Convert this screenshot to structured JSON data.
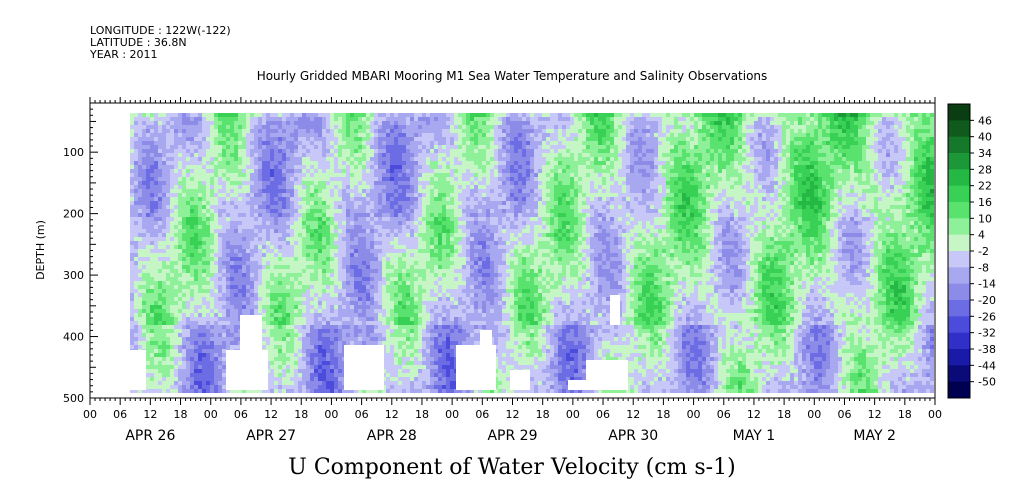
{
  "header": {
    "longitude": "LONGITUDE : 122W(-122)",
    "latitude": "LATITUDE : 36.8N",
    "year": "YEAR : 2011"
  },
  "chart_data": {
    "type": "heatmap",
    "title": "Hourly Gridded MBARI Mooring M1 Sea Water Temperature and Salinity Observations",
    "xlabel": "U Component of Water Velocity (cm s-1)",
    "ylabel": "DEPTH (m)",
    "ylim": [
      500,
      20
    ],
    "y_ticks": [
      100,
      200,
      300,
      400,
      500
    ],
    "x_hour_ticks": [
      "00",
      "06",
      "12",
      "18",
      "00",
      "06",
      "12",
      "18",
      "00",
      "06",
      "12",
      "18",
      "00",
      "06",
      "12",
      "18",
      "00",
      "06",
      "12",
      "18",
      "00",
      "06",
      "12",
      "18",
      "00",
      "06",
      "12",
      "18",
      "00"
    ],
    "x_day_labels": [
      "APR 26",
      "APR 27",
      "APR 28",
      "APR 29",
      "APR 30",
      "MAY  1",
      "MAY  2"
    ],
    "colorbar_labels": [
      "46",
      "40",
      "34",
      "28",
      "22",
      "16",
      "10",
      "4",
      "-2",
      "-8",
      "-14",
      "-20",
      "-26",
      "-32",
      "-38",
      "-44",
      "-50"
    ],
    "colorbar_colors": [
      "#0a3d12",
      "#0f5a1c",
      "#15782a",
      "#1c9838",
      "#25b845",
      "#38d055",
      "#5ae26e",
      "#8ef098",
      "#c6f5c6",
      "#c8c8f8",
      "#a8a8f0",
      "#8c8ce8",
      "#6c6ce4",
      "#4c4cdc",
      "#3030c8",
      "#1a1aa8",
      "#0a0a78",
      "#000050"
    ],
    "data_summary": "U velocity ranging roughly -20 to +20 cm s-1; surface layer positive (green), alternating diurnal positive/negative bands at depth"
  }
}
